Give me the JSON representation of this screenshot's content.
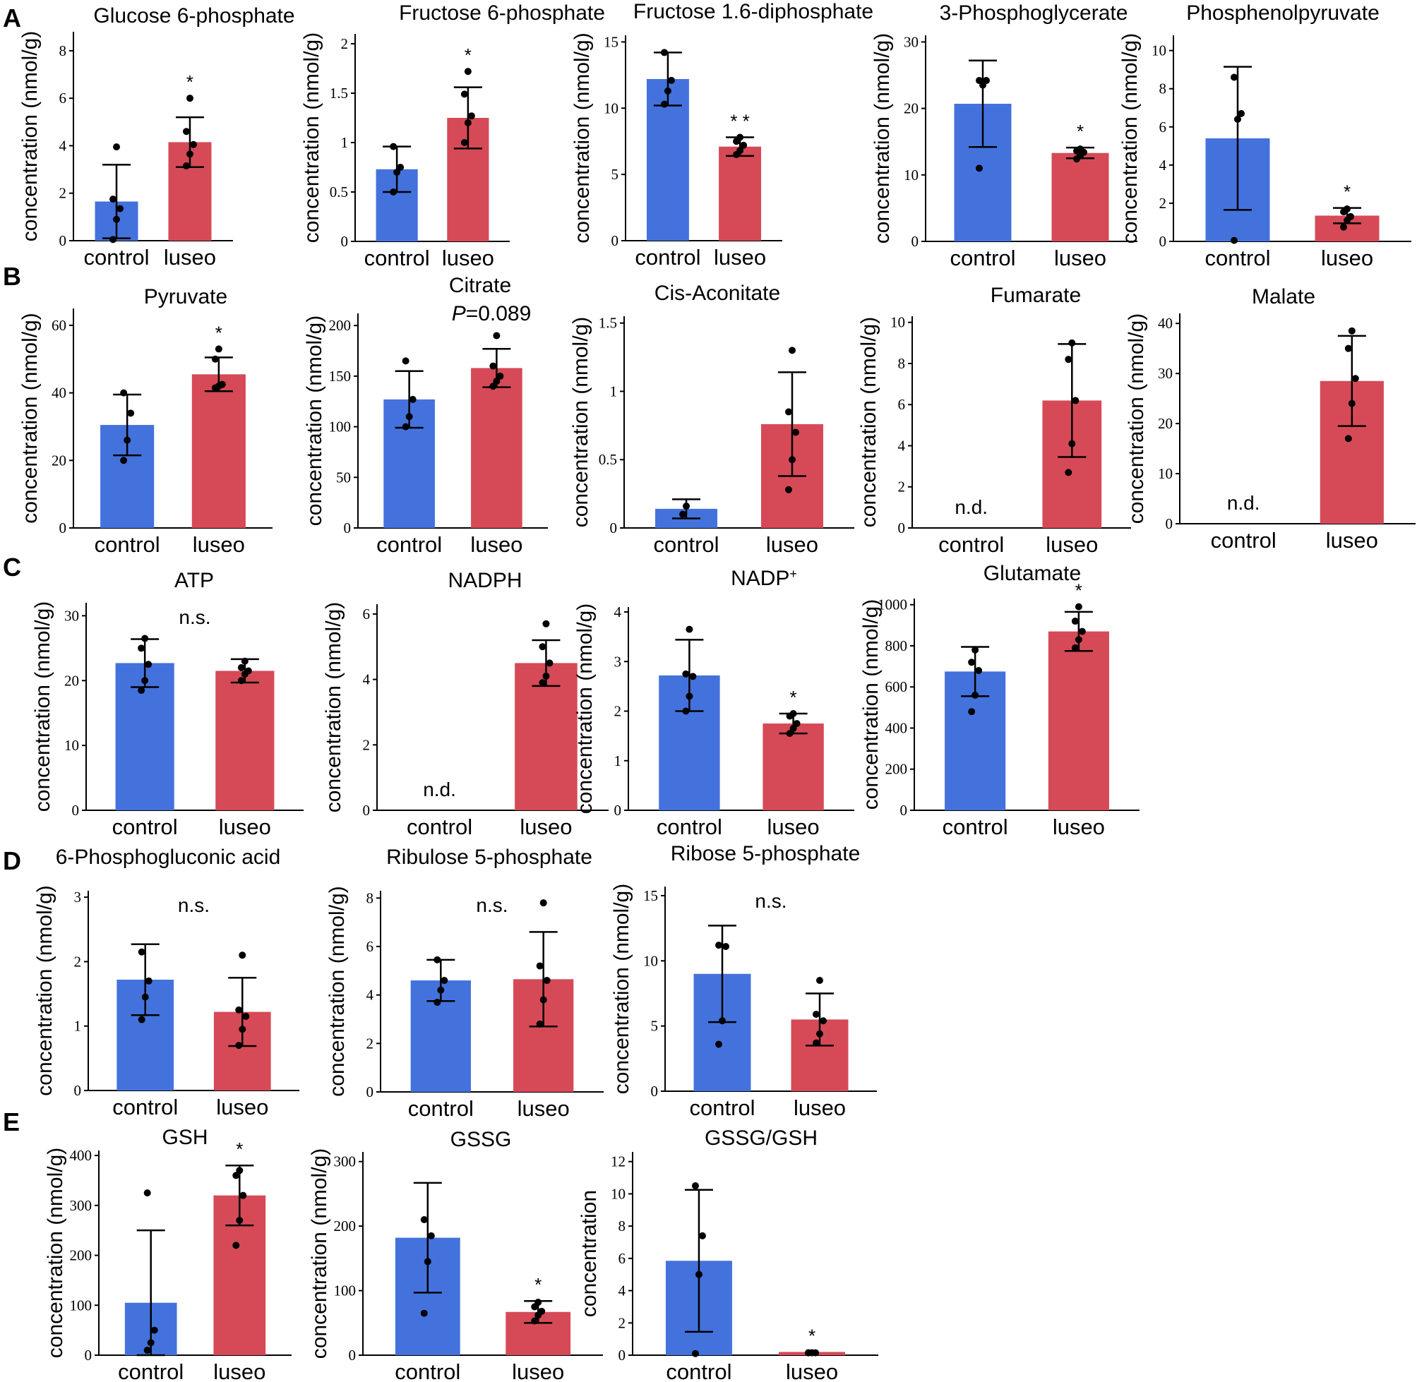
{
  "figure": {
    "panel_letters": [
      "A",
      "B",
      "C",
      "D",
      "E"
    ],
    "colors": {
      "control": "#4472dd",
      "luseo": "#d64a57"
    }
  },
  "chart_data": [
    {
      "panel": "A",
      "type": "bar",
      "title": "Glucose 6-phosphate",
      "title_italic_prefix": "",
      "ylabel": "concentration (nmol/g)",
      "yticks": [
        0,
        2,
        4,
        6,
        8
      ],
      "ylim": [
        0,
        8.8
      ],
      "categories": [
        "control",
        "luseo"
      ],
      "values": [
        1.65,
        4.15
      ],
      "err": [
        1.55,
        1.05
      ],
      "points": [
        [
          0.05,
          0.9,
          1.35,
          1.75,
          3.95
        ],
        [
          3.15,
          3.65,
          4.05,
          4.6,
          6.0
        ]
      ],
      "annotation": "*",
      "annotation_on": "luseo",
      "nd": []
    },
    {
      "panel": "A",
      "type": "bar",
      "title": "Fructose 6-phosphate",
      "title_italic_prefix": "",
      "ylabel": "concentration (nmol/g)",
      "yticks": [
        0,
        0.5,
        1,
        1.5,
        2
      ],
      "ylim": [
        0,
        2.1
      ],
      "categories": [
        "control",
        "luseo"
      ],
      "values": [
        0.73,
        1.25
      ],
      "err": [
        0.23,
        0.31
      ],
      "points": [
        [
          0.5,
          0.7,
          0.75,
          0.96
        ],
        [
          1.0,
          1.2,
          1.27,
          1.49,
          1.72
        ]
      ],
      "annotation": "*",
      "annotation_on": "luseo",
      "nd": []
    },
    {
      "panel": "A",
      "type": "bar",
      "title": "Fructose 1.6-diphosphate",
      "title_italic_prefix": "",
      "ylabel": "concentration (nmol/g)",
      "yticks": [
        0,
        5,
        10,
        15
      ],
      "ylim": [
        0,
        15.5
      ],
      "categories": [
        "control",
        "luseo"
      ],
      "values": [
        12.2,
        7.1
      ],
      "err": [
        2.0,
        0.7
      ],
      "points": [
        [
          10.3,
          11.3,
          12.1,
          14.2
        ],
        [
          6.5,
          6.8,
          7.2,
          7.5,
          7.8
        ]
      ],
      "annotation": "* *",
      "annotation_on": "luseo",
      "nd": []
    },
    {
      "panel": "A",
      "type": "bar",
      "title": "3-Phosphoglycerate",
      "title_italic_prefix": "",
      "ylabel": "concentration (nmol/g)",
      "yticks": [
        0,
        10,
        20,
        30
      ],
      "ylim": [
        0,
        31
      ],
      "categories": [
        "control",
        "luseo"
      ],
      "values": [
        20.7,
        13.3
      ],
      "err": [
        6.5,
        0.8
      ],
      "points": [
        [
          11.0,
          23.5,
          24.2,
          24.2
        ],
        [
          12.4,
          12.9,
          13.4,
          13.6,
          13.9
        ]
      ],
      "annotation": "*",
      "annotation_on": "luseo",
      "nd": []
    },
    {
      "panel": "A",
      "type": "bar",
      "title": "Phosphenolpyruvate",
      "title_italic_prefix": "",
      "ylabel": "concentration (nmol/g)",
      "yticks": [
        0,
        2,
        4,
        6,
        8,
        10
      ],
      "ylim": [
        0,
        10.8
      ],
      "categories": [
        "control",
        "luseo"
      ],
      "values": [
        5.4,
        1.35
      ],
      "err": [
        3.75,
        0.4
      ],
      "points": [
        [
          0.05,
          6.4,
          6.7,
          8.6
        ],
        [
          0.75,
          1.1,
          1.3,
          1.55,
          1.7
        ]
      ],
      "annotation": "*",
      "annotation_on": "luseo",
      "nd": []
    },
    {
      "panel": "B",
      "type": "bar",
      "title": "Pyruvate",
      "title_italic_prefix": "",
      "ylabel": "concentration (nmol/g)",
      "yticks": [
        0,
        20,
        40,
        60
      ],
      "ylim": [
        0,
        65
      ],
      "categories": [
        "control",
        "luseo"
      ],
      "values": [
        30.5,
        45.5
      ],
      "err": [
        9.0,
        5.0
      ],
      "points": [
        [
          20.0,
          26.0,
          34.0,
          40.0
        ],
        [
          41.5,
          42.0,
          42.5,
          50.0,
          53.0
        ]
      ],
      "annotation": "*",
      "annotation_on": "luseo",
      "nd": []
    },
    {
      "panel": "B",
      "type": "bar",
      "title": "Citrate",
      "title_italic_prefix": "",
      "subtitle_italic": "P",
      "subtitle_rest": "=0.089",
      "ylabel": "concentration (nmol/g)",
      "yticks": [
        0,
        50,
        100,
        150,
        200
      ],
      "ylim": [
        0,
        212
      ],
      "categories": [
        "control",
        "luseo"
      ],
      "values": [
        127,
        158
      ],
      "err": [
        28,
        19
      ],
      "points": [
        [
          100,
          110,
          127,
          165
        ],
        [
          140,
          145,
          150,
          160,
          190
        ]
      ],
      "annotation": "",
      "annotation_on": "luseo",
      "nd": []
    },
    {
      "panel": "B",
      "type": "bar",
      "title": "Cis-Aconitate",
      "title_italic_prefix": "",
      "ylabel": "concentration (nmol/g)",
      "yticks": [
        0,
        0.5,
        1,
        1.5
      ],
      "ylim": [
        0,
        1.55
      ],
      "categories": [
        "control",
        "luseo"
      ],
      "values": [
        0.14,
        0.76
      ],
      "err": [
        0.07,
        0.38
      ],
      "points": [
        [
          0.1,
          0.16
        ],
        [
          0.28,
          0.5,
          0.7,
          0.85,
          1.3
        ]
      ],
      "annotation": "",
      "annotation_on": "luseo",
      "nd": []
    },
    {
      "panel": "B",
      "type": "bar",
      "title": "Fumarate",
      "title_italic_prefix": "",
      "ylabel": "concentration (nmol/g)",
      "yticks": [
        0,
        2,
        4,
        6,
        8,
        10
      ],
      "ylim": [
        0,
        10.3
      ],
      "categories": [
        "control",
        "luseo"
      ],
      "values": [
        0,
        6.2
      ],
      "err": [
        0,
        2.75
      ],
      "points": [
        [],
        [
          2.7,
          4.1,
          6.2,
          8.2,
          9.0
        ]
      ],
      "annotation": "",
      "annotation_on": "luseo",
      "nd": [
        "n.d."
      ]
    },
    {
      "panel": "B",
      "type": "bar",
      "title": "Malate",
      "title_italic_prefix": "",
      "ylabel": "concentration (nmol/g)",
      "yticks": [
        0,
        10,
        20,
        30,
        40
      ],
      "ylim": [
        0,
        42
      ],
      "categories": [
        "control",
        "luseo"
      ],
      "values": [
        0,
        28.5
      ],
      "err": [
        0,
        9.0
      ],
      "points": [
        [],
        [
          17.0,
          24.0,
          29.0,
          35.0,
          38.5
        ]
      ],
      "annotation": "",
      "annotation_on": "luseo",
      "nd": [
        "n.d."
      ]
    },
    {
      "panel": "C",
      "type": "bar",
      "title": "ATP",
      "title_italic_prefix": "",
      "ylabel": "concentration (nmol/g)",
      "yticks": [
        0,
        10,
        20,
        30
      ],
      "ylim": [
        0,
        32
      ],
      "categories": [
        "control",
        "luseo"
      ],
      "values": [
        22.7,
        21.5
      ],
      "err": [
        3.7,
        1.8
      ],
      "points": [
        [
          18.5,
          20.0,
          22.5,
          25.0,
          26.5
        ],
        [
          20.0,
          21.0,
          21.5,
          22.0,
          23.0
        ]
      ],
      "annotation": "n.s.",
      "annotation_on": "both",
      "nd": []
    },
    {
      "panel": "C",
      "type": "bar",
      "title": "NADPH",
      "title_italic_prefix": "",
      "ylabel": "concentration (nmol/g)",
      "yticks": [
        0,
        2,
        4,
        6
      ],
      "ylim": [
        0,
        6.3
      ],
      "categories": [
        "control",
        "luseo"
      ],
      "values": [
        0,
        4.5
      ],
      "err": [
        0,
        0.7
      ],
      "points": [
        [],
        [
          3.9,
          4.1,
          4.5,
          5.0,
          5.7
        ]
      ],
      "annotation": "",
      "annotation_on": "luseo",
      "nd": [
        "n.d."
      ]
    },
    {
      "panel": "C",
      "type": "bar",
      "title": "NADP",
      "title_sup": "+",
      "title_italic_prefix": "",
      "ylabel": "concentration (nmol/g)",
      "yticks": [
        0,
        1,
        2,
        3,
        4
      ],
      "ylim": [
        0,
        4.1
      ],
      "categories": [
        "control",
        "luseo"
      ],
      "values": [
        2.72,
        1.75
      ],
      "err": [
        0.72,
        0.2
      ],
      "points": [
        [
          2.0,
          2.3,
          2.7,
          2.75,
          3.65
        ],
        [
          1.55,
          1.65,
          1.75,
          1.9,
          1.95
        ]
      ],
      "annotation": "*",
      "annotation_on": "luseo",
      "nd": []
    },
    {
      "panel": "C",
      "type": "bar",
      "title": "Glutamate",
      "title_italic_prefix": "",
      "ylabel": "concentration (nmol/g)",
      "yticks": [
        0,
        200,
        400,
        600,
        800,
        1000
      ],
      "ylim": [
        0,
        1030
      ],
      "categories": [
        "control",
        "luseo"
      ],
      "values": [
        675,
        870
      ],
      "err": [
        120,
        95
      ],
      "points": [
        [
          480,
          560,
          680,
          720,
          780
        ],
        [
          790,
          830,
          870,
          920,
          990
        ]
      ],
      "annotation": "*",
      "annotation_on": "luseo",
      "nd": []
    },
    {
      "panel": "D",
      "type": "bar",
      "title": "6-Phosphogluconic acid",
      "title_italic_prefix": "",
      "ylabel": "concentration (nmol/g)",
      "yticks": [
        0,
        1,
        2,
        3
      ],
      "ylim": [
        0,
        3.1
      ],
      "categories": [
        "control",
        "luseo"
      ],
      "values": [
        1.72,
        1.22
      ],
      "err": [
        0.55,
        0.53
      ],
      "points": [
        [
          1.1,
          1.45,
          1.7,
          2.15
        ],
        [
          0.7,
          0.95,
          1.15,
          1.25,
          2.1
        ]
      ],
      "annotation": "n.s.",
      "annotation_on": "both",
      "nd": []
    },
    {
      "panel": "D",
      "type": "bar",
      "title": "Ribulose 5-phosphate",
      "title_italic_prefix": "",
      "ylabel": "concentration (nmol/g)",
      "yticks": [
        0,
        2,
        4,
        6,
        8
      ],
      "ylim": [
        0,
        8.3
      ],
      "categories": [
        "control",
        "luseo"
      ],
      "values": [
        4.6,
        4.65
      ],
      "err": [
        0.85,
        1.95
      ],
      "points": [
        [
          3.7,
          4.2,
          4.6,
          5.45
        ],
        [
          2.8,
          3.8,
          4.6,
          5.2,
          7.8
        ]
      ],
      "annotation": "n.s.",
      "annotation_on": "both",
      "nd": []
    },
    {
      "panel": "D",
      "type": "bar",
      "title": "Ribose 5-phosphate",
      "title_italic_prefix": "",
      "ylabel": "concentration (nmol/g)",
      "yticks": [
        0,
        5,
        10,
        15
      ],
      "ylim": [
        0,
        15.7
      ],
      "categories": [
        "control",
        "luseo"
      ],
      "values": [
        9.0,
        5.5
      ],
      "err": [
        3.7,
        2.0
      ],
      "points": [
        [
          3.6,
          5.4,
          11.1,
          11.2
        ],
        [
          3.7,
          4.4,
          5.4,
          5.9,
          8.5
        ]
      ],
      "annotation": "n.s.",
      "annotation_on": "both",
      "nd": []
    },
    {
      "panel": "E",
      "type": "bar",
      "title": "GSH",
      "title_italic_prefix": "",
      "ylabel": "concentration (nmol/g)",
      "yticks": [
        0,
        100,
        200,
        300,
        400
      ],
      "ylim": [
        0,
        410
      ],
      "categories": [
        "control",
        "luseo"
      ],
      "values": [
        105,
        320
      ],
      "err": [
        145,
        60
      ],
      "points": [
        [
          10,
          25,
          50,
          325
        ],
        [
          220,
          270,
          320,
          360,
          370
        ]
      ],
      "annotation": "*",
      "annotation_on": "luseo",
      "nd": []
    },
    {
      "panel": "E",
      "type": "bar",
      "title": "GSSG",
      "title_italic_prefix": "",
      "ylabel": "concentration (nmol/g)",
      "yticks": [
        0,
        100,
        200,
        300
      ],
      "ylim": [
        0,
        315
      ],
      "categories": [
        "control",
        "luseo"
      ],
      "values": [
        182,
        67
      ],
      "err": [
        85,
        17
      ],
      "points": [
        [
          65,
          145,
          185,
          210
        ],
        [
          53,
          62,
          68,
          75,
          82
        ]
      ],
      "annotation": "*",
      "annotation_on": "luseo",
      "nd": []
    },
    {
      "panel": "E",
      "type": "bar",
      "title": "GSSG/GSH",
      "title_italic_prefix": "",
      "ylabel": "concentration",
      "yticks": [
        0,
        2,
        4,
        6,
        8,
        10,
        12
      ],
      "ylim": [
        0,
        12.6
      ],
      "categories": [
        "control",
        "luseo"
      ],
      "values": [
        5.85,
        0.2
      ],
      "err": [
        4.4,
        0
      ],
      "points": [
        [
          0.1,
          5.0,
          7.4,
          10.5
        ],
        [
          0.15,
          0.15,
          0.15,
          0.15,
          0.15
        ]
      ],
      "annotation": "*",
      "annotation_on": "luseo",
      "nd": []
    }
  ]
}
